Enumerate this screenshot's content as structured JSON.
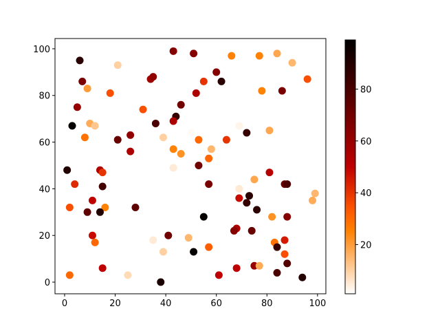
{
  "chart_data": {
    "type": "scatter",
    "title": "",
    "xlabel": "",
    "ylabel": "",
    "xlim": [
      -3.8,
      103.3
    ],
    "ylim": [
      -5,
      104.4
    ],
    "xticks": [
      0,
      20,
      40,
      60,
      80,
      100
    ],
    "yticks": [
      0,
      20,
      40,
      60,
      80,
      100
    ],
    "grid": false,
    "colormap": "gist_heat_r",
    "color_range": [
      1,
      99
    ],
    "colorbar_ticks": [
      20,
      40,
      60,
      80
    ],
    "points": [
      {
        "x": 6,
        "y": 95,
        "c": 88
      },
      {
        "x": 21,
        "y": 93,
        "c": 10
      },
      {
        "x": 7,
        "y": 86,
        "c": 68
      },
      {
        "x": 9,
        "y": 83,
        "c": 20
      },
      {
        "x": 18,
        "y": 81,
        "c": 35
      },
      {
        "x": 5,
        "y": 75,
        "c": 60
      },
      {
        "x": 3,
        "y": 67,
        "c": 98
      },
      {
        "x": 10,
        "y": 68,
        "c": 17
      },
      {
        "x": 12,
        "y": 67,
        "c": 12
      },
      {
        "x": 8,
        "y": 62,
        "c": 28
      },
      {
        "x": 21,
        "y": 61,
        "c": 72
      },
      {
        "x": 26,
        "y": 63,
        "c": 62
      },
      {
        "x": 26,
        "y": 56,
        "c": 55
      },
      {
        "x": 31,
        "y": 74,
        "c": 35
      },
      {
        "x": 34,
        "y": 87,
        "c": 58
      },
      {
        "x": 35,
        "y": 88,
        "c": 62
      },
      {
        "x": 43,
        "y": 99,
        "c": 65
      },
      {
        "x": 36,
        "y": 68,
        "c": 80
      },
      {
        "x": 44,
        "y": 71,
        "c": 85
      },
      {
        "x": 43,
        "y": 69,
        "c": 55
      },
      {
        "x": 46,
        "y": 76,
        "c": 70
      },
      {
        "x": 39,
        "y": 62,
        "c": 10
      },
      {
        "x": 43,
        "y": 57,
        "c": 25
      },
      {
        "x": 46,
        "y": 55,
        "c": 22
      },
      {
        "x": 43,
        "y": 49,
        "c": 5
      },
      {
        "x": 51,
        "y": 98,
        "c": 65
      },
      {
        "x": 55,
        "y": 86,
        "c": 40
      },
      {
        "x": 52,
        "y": 81,
        "c": 55
      },
      {
        "x": 60,
        "y": 90,
        "c": 65
      },
      {
        "x": 62,
        "y": 86,
        "c": 88
      },
      {
        "x": 66,
        "y": 97,
        "c": 25
      },
      {
        "x": 77,
        "y": 97,
        "c": 25
      },
      {
        "x": 84,
        "y": 98,
        "c": 18
      },
      {
        "x": 90,
        "y": 94,
        "c": 15
      },
      {
        "x": 96,
        "y": 87,
        "c": 35
      },
      {
        "x": 78,
        "y": 82,
        "c": 25
      },
      {
        "x": 86,
        "y": 82,
        "c": 68
      },
      {
        "x": 72,
        "y": 64,
        "c": 85
      },
      {
        "x": 69,
        "y": 67,
        "c": 3
      },
      {
        "x": 81,
        "y": 65,
        "c": 18
      },
      {
        "x": 64,
        "y": 61,
        "c": 40
      },
      {
        "x": 53,
        "y": 61,
        "c": 30
      },
      {
        "x": 58,
        "y": 57,
        "c": 15
      },
      {
        "x": 57,
        "y": 53,
        "c": 30
      },
      {
        "x": 53,
        "y": 50,
        "c": 70
      },
      {
        "x": 50,
        "y": 64,
        "c": 2
      },
      {
        "x": 1,
        "y": 48,
        "c": 90
      },
      {
        "x": 14,
        "y": 48,
        "c": 55
      },
      {
        "x": 15,
        "y": 47,
        "c": 40
      },
      {
        "x": 4,
        "y": 42,
        "c": 42
      },
      {
        "x": 15,
        "y": 41,
        "c": 82
      },
      {
        "x": 11,
        "y": 35,
        "c": 50
      },
      {
        "x": 2,
        "y": 32,
        "c": 35
      },
      {
        "x": 16,
        "y": 32,
        "c": 25
      },
      {
        "x": 28,
        "y": 32,
        "c": 75
      },
      {
        "x": 9,
        "y": 30,
        "c": 75
      },
      {
        "x": 14,
        "y": 30,
        "c": 90
      },
      {
        "x": 11,
        "y": 20,
        "c": 48
      },
      {
        "x": 12,
        "y": 17,
        "c": 30
      },
      {
        "x": 35,
        "y": 18,
        "c": 5
      },
      {
        "x": 41,
        "y": 20,
        "c": 70
      },
      {
        "x": 49,
        "y": 19,
        "c": 15
      },
      {
        "x": 39,
        "y": 13,
        "c": 10
      },
      {
        "x": 15,
        "y": 6,
        "c": 50
      },
      {
        "x": 2,
        "y": 3,
        "c": 30
      },
      {
        "x": 25,
        "y": 3,
        "c": 8
      },
      {
        "x": 38,
        "y": 0,
        "c": 92
      },
      {
        "x": 81,
        "y": 47,
        "c": 52
      },
      {
        "x": 75,
        "y": 44,
        "c": 18
      },
      {
        "x": 57,
        "y": 42,
        "c": 68
      },
      {
        "x": 87,
        "y": 42,
        "c": 72
      },
      {
        "x": 88,
        "y": 42,
        "c": 80
      },
      {
        "x": 69,
        "y": 40,
        "c": 5
      },
      {
        "x": 99,
        "y": 38,
        "c": 15
      },
      {
        "x": 98,
        "y": 35,
        "c": 17
      },
      {
        "x": 69,
        "y": 36,
        "c": 48
      },
      {
        "x": 73,
        "y": 37,
        "c": 88
      },
      {
        "x": 72,
        "y": 34,
        "c": 85
      },
      {
        "x": 76,
        "y": 31,
        "c": 88
      },
      {
        "x": 55,
        "y": 28,
        "c": 98
      },
      {
        "x": 82,
        "y": 28,
        "c": 22
      },
      {
        "x": 88,
        "y": 28,
        "c": 65
      },
      {
        "x": 68,
        "y": 23,
        "c": 55
      },
      {
        "x": 67,
        "y": 22,
        "c": 65
      },
      {
        "x": 74,
        "y": 22,
        "c": 72
      },
      {
        "x": 87,
        "y": 18,
        "c": 45
      },
      {
        "x": 83,
        "y": 17,
        "c": 28
      },
      {
        "x": 84,
        "y": 15,
        "c": 85
      },
      {
        "x": 57,
        "y": 15,
        "c": 32
      },
      {
        "x": 51,
        "y": 13,
        "c": 98
      },
      {
        "x": 87,
        "y": 12,
        "c": 35
      },
      {
        "x": 88,
        "y": 8,
        "c": 78
      },
      {
        "x": 75,
        "y": 7,
        "c": 60
      },
      {
        "x": 77,
        "y": 7,
        "c": 17
      },
      {
        "x": 68,
        "y": 6,
        "c": 50
      },
      {
        "x": 84,
        "y": 4,
        "c": 80
      },
      {
        "x": 61,
        "y": 3,
        "c": 50
      },
      {
        "x": 94,
        "y": 2,
        "c": 90
      }
    ]
  }
}
